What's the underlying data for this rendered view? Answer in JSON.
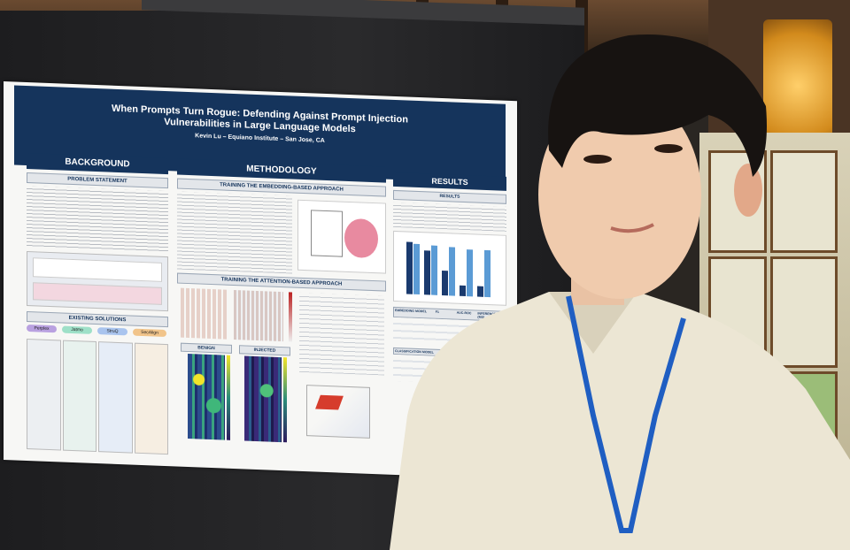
{
  "poster": {
    "title": "When Prompts Turn Rogue: Defending Against Prompt Injection Vulnerabilities in Large Language Models",
    "author": "Kevin Lu – Equiano Institute – San Jose, CA",
    "background": {
      "heading": "BACKGROUND",
      "problem_heading": "PROBLEM STATEMENT",
      "existing_heading": "EXISTING SOLUTIONS",
      "pills": [
        "Perplex",
        "Jatmo",
        "StruQ",
        "SecAlign"
      ]
    },
    "methodology": {
      "heading": "METHODOLOGY",
      "embedding_heading": "TRAINING THE EMBEDDING-BASED APPROACH",
      "attention_heading": "TRAINING THE ATTENTION-BASED APPROACH",
      "benign_label": "BENIGN",
      "injected_label": "INJECTED"
    },
    "results": {
      "heading": "RESULTS",
      "sub_heading": "RESULTS",
      "table_headers": [
        "EMBEDDING MODEL",
        "F1",
        "AUC-ROC",
        "INFERENCE TIME (MS)"
      ],
      "classification_header": "CLASSIFICATION MODEL"
    },
    "chart": {
      "series_a_color": "#1a3a6e",
      "series_b_color": "#5b9bd5",
      "values_a": [
        0.95,
        0.8,
        0.45,
        0.2,
        0.2
      ],
      "values_b": [
        0.92,
        0.9,
        0.88,
        0.86,
        0.85
      ]
    }
  },
  "colors": {
    "poster_header": "#15345c",
    "lanyard": "#1f5ec2",
    "shirt": "#ece6d4"
  }
}
